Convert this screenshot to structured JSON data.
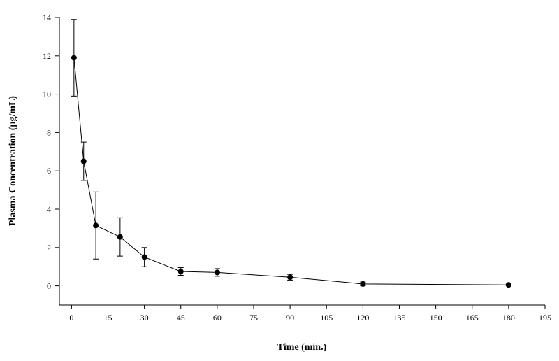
{
  "chart_data": {
    "type": "line",
    "xlabel": "Time (min.)",
    "ylabel": "Plasma Concentration (µg/mL)",
    "xlim": [
      -5,
      195
    ],
    "ylim": [
      -1,
      14
    ],
    "xticks": [
      0,
      15,
      30,
      45,
      60,
      75,
      90,
      105,
      120,
      135,
      150,
      165,
      180,
      195
    ],
    "yticks": [
      0,
      2,
      4,
      6,
      8,
      10,
      12,
      14
    ],
    "grid": false,
    "series": [
      {
        "x": [
          1,
          5,
          10,
          20,
          30,
          45,
          60,
          90,
          120,
          180
        ],
        "y": [
          11.9,
          6.5,
          3.15,
          2.55,
          1.5,
          0.75,
          0.7,
          0.45,
          0.1,
          0.05
        ],
        "err": [
          2.0,
          1.0,
          1.75,
          1.0,
          0.5,
          0.2,
          0.2,
          0.15,
          0.1,
          0.05
        ]
      }
    ]
  }
}
